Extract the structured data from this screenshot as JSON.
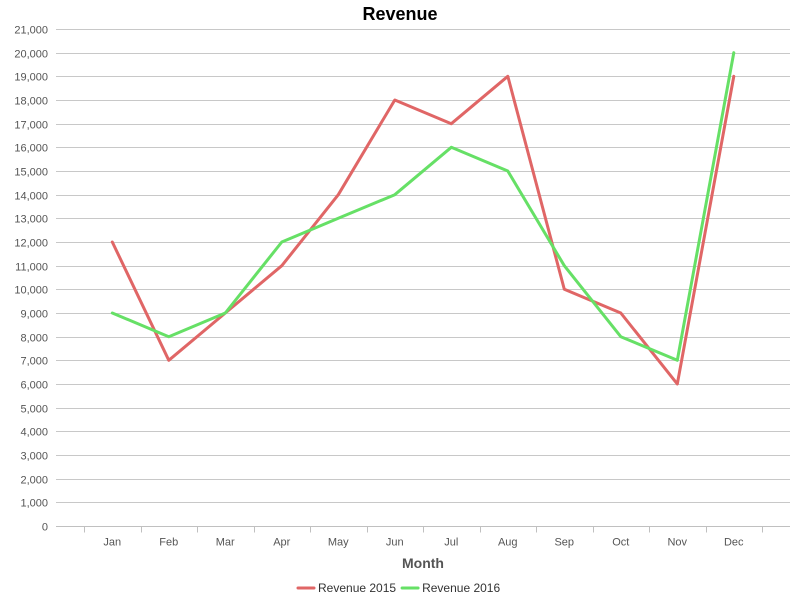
{
  "chart_data": {
    "type": "line",
    "title": "Revenue",
    "xlabel": "Month",
    "ylabel": "",
    "categories": [
      "Jan",
      "Feb",
      "Mar",
      "Apr",
      "May",
      "Jun",
      "Jul",
      "Aug",
      "Sep",
      "Oct",
      "Nov",
      "Dec"
    ],
    "ylim": [
      0,
      21000
    ],
    "ytick_step": 1000,
    "grid": true,
    "legend_position": "bottom-center",
    "series": [
      {
        "name": "Revenue 2015",
        "color": "#e06666",
        "values": [
          12000,
          7000,
          9000,
          11000,
          14000,
          18000,
          17000,
          19000,
          10000,
          9000,
          6000,
          19000
        ]
      },
      {
        "name": "Revenue 2016",
        "color": "#66e066",
        "values": [
          9000,
          8000,
          9000,
          12000,
          13000,
          14000,
          16000,
          15000,
          11000,
          8000,
          7000,
          20000
        ]
      }
    ]
  }
}
